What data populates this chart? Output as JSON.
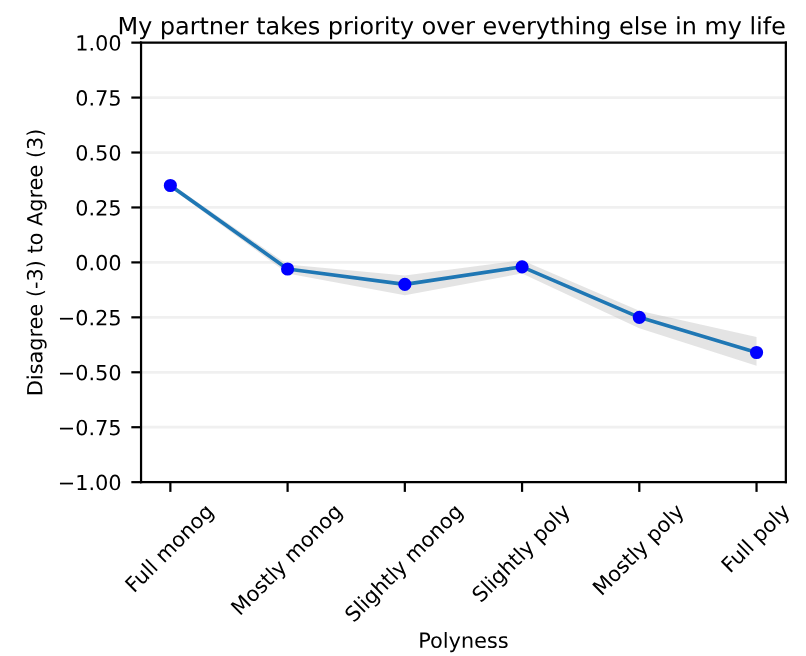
{
  "chart_data": {
    "type": "line",
    "title": "My partner takes priority over everything else in my life",
    "xlabel": "Polyness",
    "ylabel": "Disagree (-3) to Agree (3)",
    "categories": [
      "Full monog",
      "Mostly monog",
      "Slightly monog",
      "Slightly poly",
      "Mostly poly",
      "Full poly"
    ],
    "series": [
      {
        "color": "#1f77b4",
        "values": [
          0.35,
          -0.03,
          -0.1,
          -0.02,
          -0.25,
          -0.41
        ],
        "lower": [
          0.34,
          -0.05,
          -0.15,
          -0.05,
          -0.3,
          -0.47
        ],
        "upper": [
          0.36,
          -0.01,
          -0.06,
          0.01,
          -0.22,
          -0.34
        ]
      },
      {
        "type": "scatter",
        "color": "#0000ff",
        "values": [
          0.35,
          -0.03,
          -0.1,
          -0.02,
          -0.25,
          -0.41
        ]
      }
    ],
    "ylim": [
      -1.0,
      1.0
    ],
    "yticks": [
      {
        "value": -1.0,
        "label": "−1.00"
      },
      {
        "value": -0.75,
        "label": "−0.75"
      },
      {
        "value": -0.5,
        "label": "−0.50"
      },
      {
        "value": -0.25,
        "label": "−0.25"
      },
      {
        "value": 0,
        "label": "0.00"
      },
      {
        "value": 0.25,
        "label": "0.25"
      },
      {
        "value": 0.5,
        "label": "0.50"
      },
      {
        "value": 0.75,
        "label": "0.75"
      },
      {
        "value": 1.0,
        "label": "1.00"
      }
    ],
    "grid": "y",
    "line_style": "solid"
  }
}
